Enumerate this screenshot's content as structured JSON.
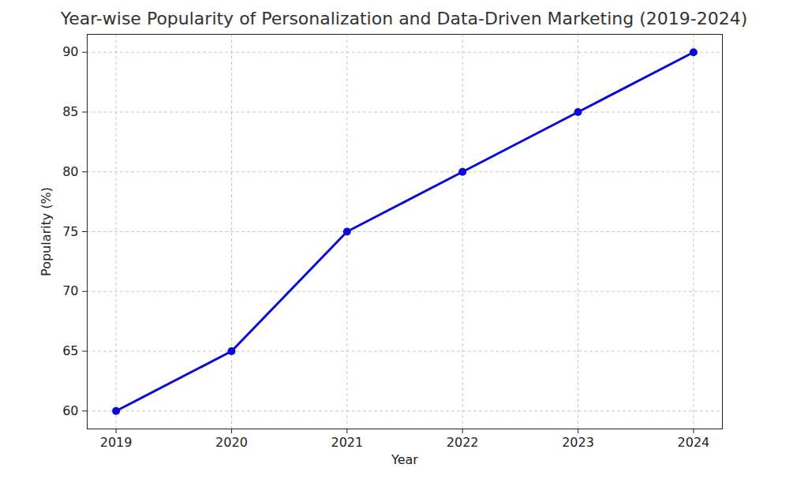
{
  "chart_data": {
    "type": "line",
    "title": "Year-wise Popularity of Personalization and Data-Driven Marketing (2019-2024)",
    "x_label": "Year",
    "y_label": "Popularity (%)",
    "x": [
      2019,
      2020,
      2021,
      2022,
      2023,
      2024
    ],
    "values": [
      60,
      65,
      75,
      80,
      85,
      90
    ],
    "color": "#0a0ad6",
    "marker": "o",
    "line_style": "solid",
    "xlim": [
      2018.75,
      2024.25
    ],
    "xticks": [
      2019,
      2020,
      2021,
      2022,
      2023,
      2024
    ],
    "ylim": [
      58.5,
      91.5
    ],
    "yticks": [
      60,
      65,
      70,
      75,
      80,
      85,
      90
    ],
    "grid": true
  }
}
